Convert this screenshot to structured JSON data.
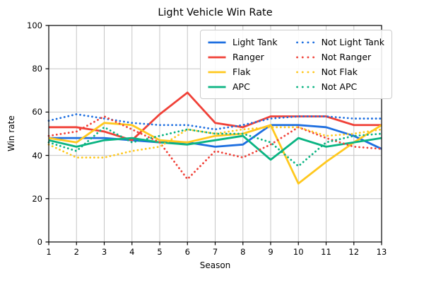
{
  "chart_data": {
    "type": "line",
    "title": "Light Vehicle Win Rate",
    "xlabel": "Season",
    "ylabel": "Win rate",
    "xlim": [
      1,
      13
    ],
    "ylim": [
      0,
      100
    ],
    "xticks": [
      1,
      2,
      3,
      4,
      5,
      6,
      7,
      8,
      9,
      10,
      11,
      12,
      13
    ],
    "yticks": [
      0,
      20,
      40,
      60,
      80,
      100
    ],
    "grid": true,
    "grid_color": "#c6c6c6",
    "legend_position": "upper center",
    "legend_columns": 2,
    "x": [
      1,
      2,
      3,
      4,
      5,
      6,
      7,
      8,
      9,
      10,
      11,
      12,
      13
    ],
    "series": [
      {
        "name": "Light Tank",
        "color": "#1e6fe0",
        "style": "solid",
        "values": [
          48,
          48,
          48,
          47,
          46,
          46,
          44,
          45,
          54,
          54,
          53,
          49,
          43
        ]
      },
      {
        "name": "Ranger",
        "color": "#f04138",
        "style": "solid",
        "values": [
          53,
          53,
          51,
          47,
          59,
          69,
          55,
          53,
          58,
          58,
          58,
          54,
          54
        ]
      },
      {
        "name": "Flak",
        "color": "#ffc81e",
        "style": "solid",
        "values": [
          48,
          46,
          55,
          54,
          47,
          46,
          49,
          50,
          54,
          27,
          37,
          46,
          54
        ]
      },
      {
        "name": "APC",
        "color": "#0ab482",
        "style": "solid",
        "values": [
          47,
          44,
          47,
          48,
          46,
          45,
          47,
          49,
          38,
          48,
          44,
          46,
          48
        ]
      },
      {
        "name": "Not Light Tank",
        "color": "#1e6fe0",
        "style": "dotted",
        "values": [
          56,
          59,
          57,
          55,
          54,
          54,
          52,
          54,
          57,
          58,
          58,
          57,
          57
        ]
      },
      {
        "name": "Not Ranger",
        "color": "#f04138",
        "style": "dotted",
        "values": [
          49,
          51,
          58,
          52,
          46,
          29,
          42,
          39,
          45,
          53,
          48,
          44,
          43
        ]
      },
      {
        "name": "Not Flak",
        "color": "#ffc81e",
        "style": "dotted",
        "values": [
          45,
          39,
          39,
          42,
          44,
          52,
          50,
          52,
          53,
          53,
          49,
          50,
          52
        ]
      },
      {
        "name": "Not APC",
        "color": "#0ab482",
        "style": "dotted",
        "values": [
          46,
          42,
          53,
          46,
          49,
          52,
          50,
          50,
          46,
          35,
          46,
          49,
          50
        ]
      }
    ]
  }
}
